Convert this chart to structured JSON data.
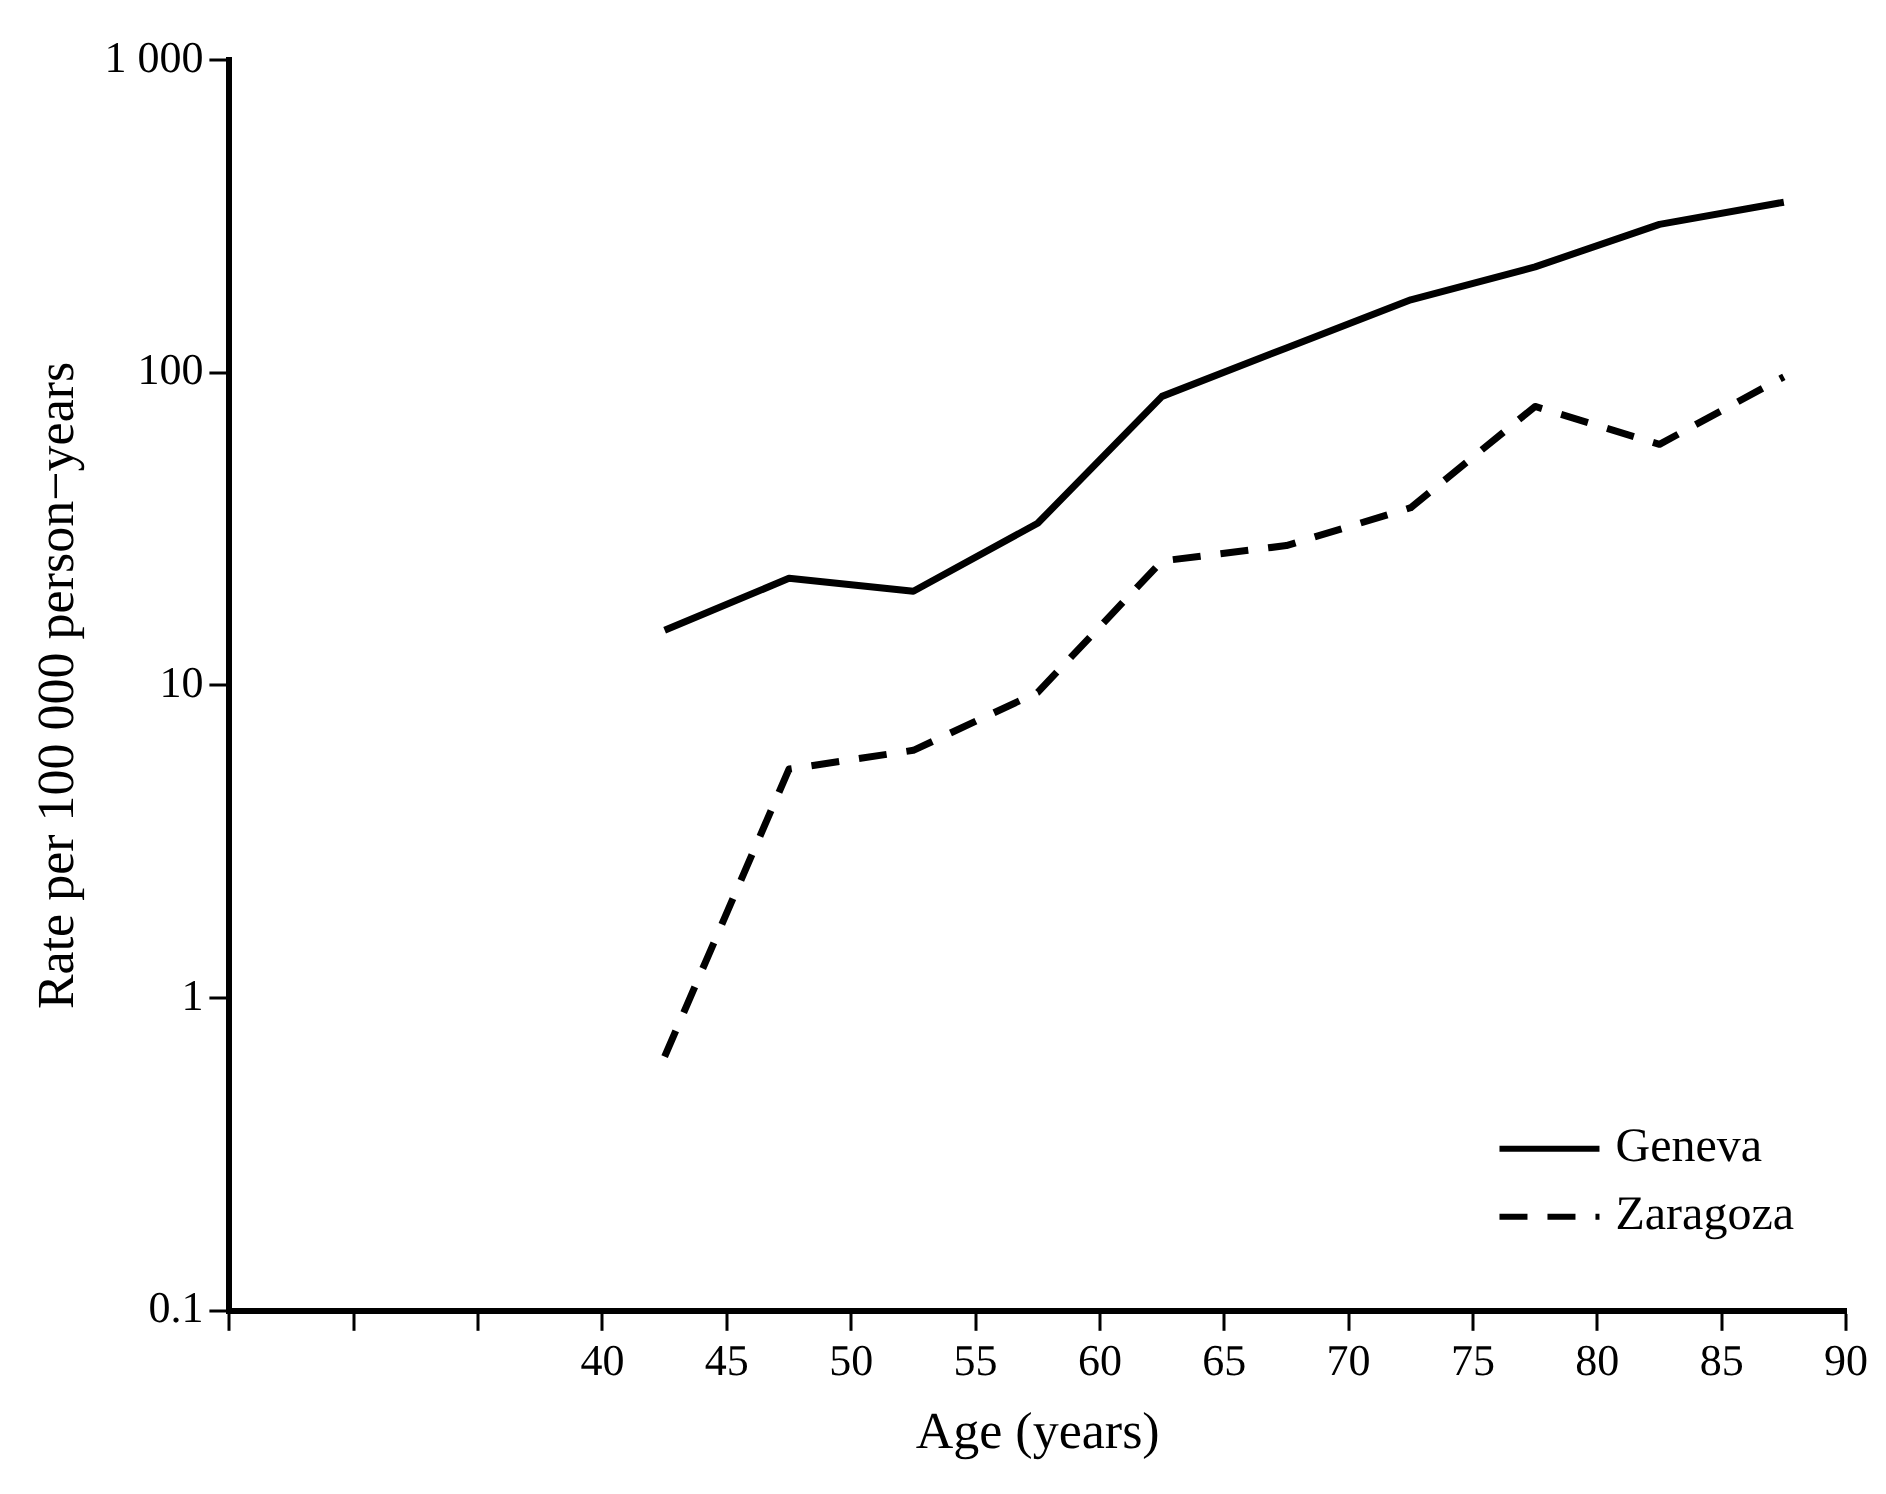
{
  "chart_data": {
    "type": "line",
    "xlabel": "Age (years)",
    "ylabel": "Rate per 100 000 person−years",
    "x": [
      42.5,
      47.5,
      52.5,
      57.5,
      62.5,
      67.5,
      72.5,
      77.5,
      82.5,
      87.5
    ],
    "series": [
      {
        "name": "Geneva",
        "color": "#000000",
        "line_style": "solid",
        "values": [
          15,
          22,
          20,
          33,
          84,
          120,
          171,
          218,
          298,
          351
        ]
      },
      {
        "name": "Zaragoza",
        "color": "#000000",
        "line_style": "dashed",
        "values": [
          0.65,
          5.4,
          6.2,
          9.5,
          25,
          28,
          37,
          78,
          59,
          97
        ]
      }
    ],
    "xlim": [
      25,
      90
    ],
    "xticks": [
      {
        "value": 25,
        "label": null
      },
      {
        "value": 30,
        "label": null
      },
      {
        "value": 35,
        "label": null
      },
      40,
      45,
      50,
      55,
      60,
      65,
      70,
      75,
      80,
      85,
      90
    ],
    "ylim": [
      0.1,
      1000
    ],
    "yticks": [
      0.1,
      1,
      10,
      100,
      {
        "value": 1000,
        "label": "1 000"
      }
    ],
    "log": "y",
    "grid": false,
    "legend": "bottom right",
    "marker": "none"
  }
}
